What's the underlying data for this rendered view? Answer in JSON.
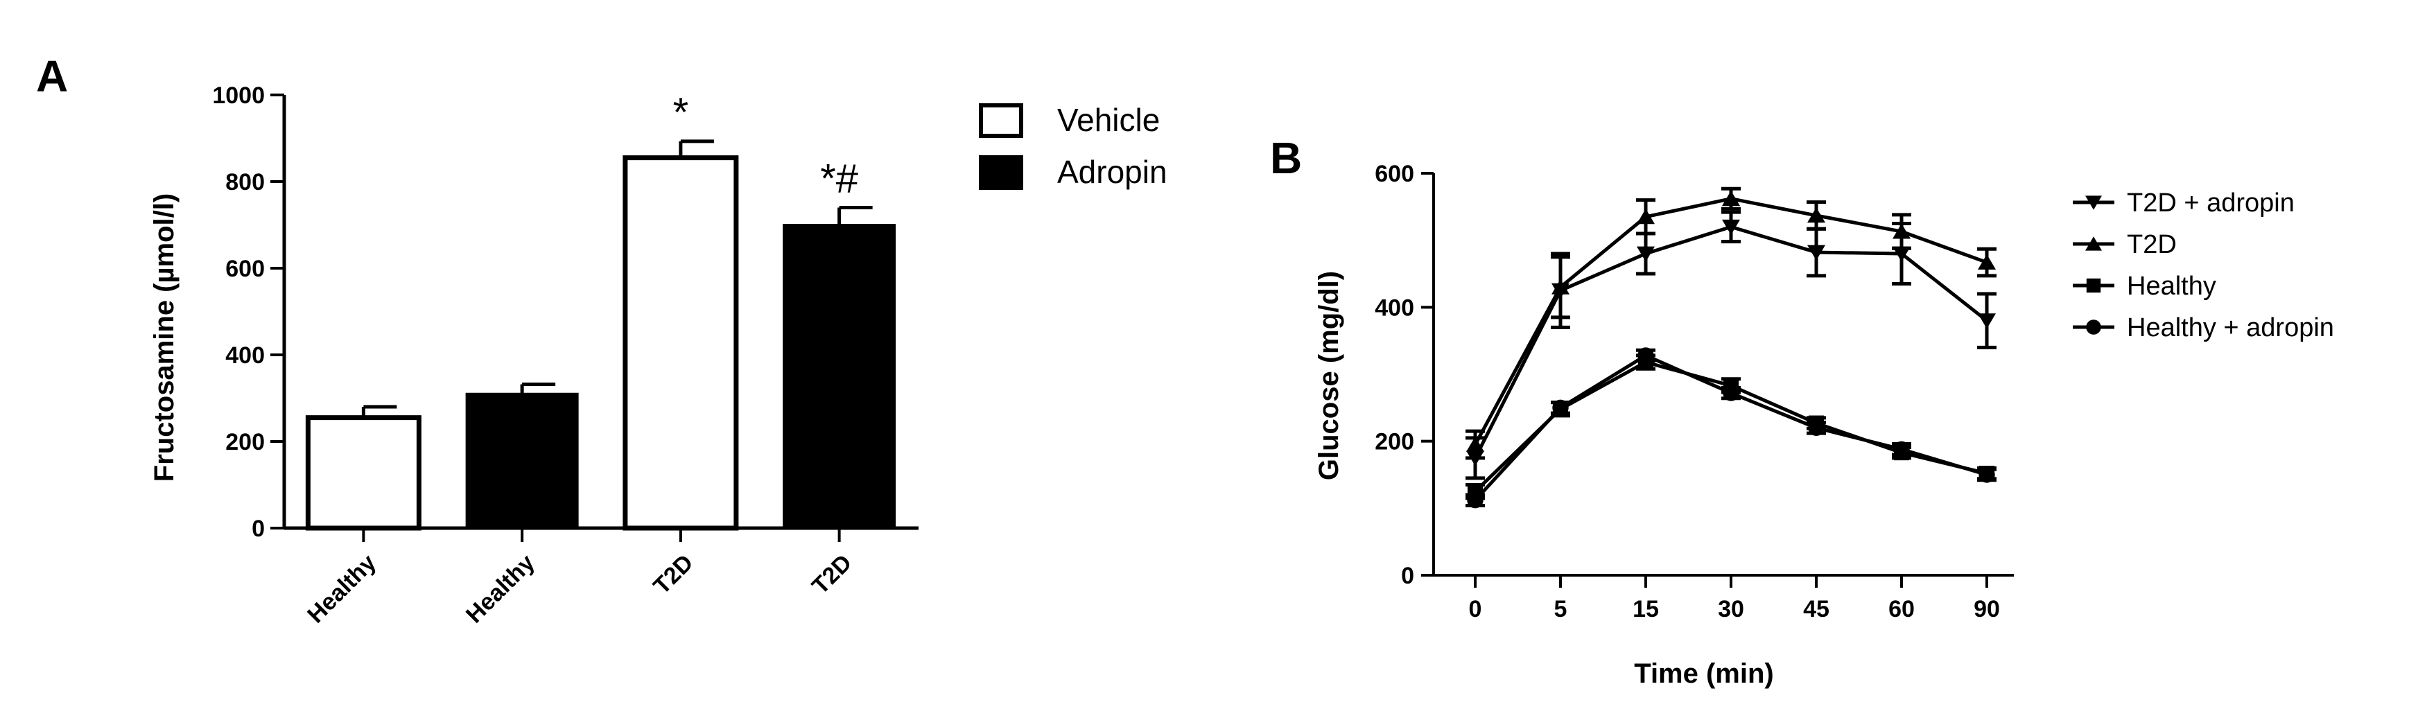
{
  "chart_data": [
    {
      "panel": "A",
      "type": "bar",
      "categories": [
        "Healthy",
        "Healthy",
        "T2D",
        "T2D"
      ],
      "series": [
        {
          "name": "Vehicle",
          "values": [
            255,
            null,
            855,
            null
          ],
          "errors": [
            25,
            null,
            38,
            null
          ],
          "color": "#ffffff"
        },
        {
          "name": "Adropin",
          "values": [
            null,
            310,
            null,
            700
          ],
          "errors": [
            null,
            22,
            null,
            40
          ],
          "color": "#000000"
        }
      ],
      "annotations": [
        {
          "category_index": 2,
          "text": "*"
        },
        {
          "category_index": 3,
          "text": "*#"
        }
      ],
      "ylabel": "Fructosamine (µmol/l)",
      "xlabel": "",
      "ylim": [
        0,
        1000
      ],
      "yticks": [
        "0",
        "200",
        "400",
        "600",
        "800",
        "1000"
      ],
      "legend": "top-right",
      "grid": false
    },
    {
      "panel": "B",
      "type": "line",
      "x": [
        "0",
        "5",
        "15",
        "30",
        "45",
        "60",
        "90"
      ],
      "series": [
        {
          "name": "T2D + adropin",
          "marker": "triangle-down",
          "values": [
            175,
            425,
            480,
            520,
            482,
            480,
            380
          ],
          "errors": [
            30,
            55,
            30,
            22,
            35,
            45,
            40
          ]
        },
        {
          "name": "T2D",
          "marker": "triangle-up",
          "values": [
            195,
            430,
            535,
            562,
            537,
            513,
            467
          ],
          "errors": [
            20,
            45,
            25,
            15,
            20,
            25,
            20
          ]
        },
        {
          "name": "Healthy",
          "marker": "square",
          "values": [
            125,
            248,
            318,
            283,
            227,
            183,
            152
          ],
          "errors": [
            10,
            10,
            10,
            10,
            8,
            8,
            8
          ]
        },
        {
          "name": "Healthy + adropin",
          "marker": "circle",
          "values": [
            112,
            250,
            328,
            272,
            220,
            188,
            150
          ],
          "errors": [
            8,
            8,
            8,
            8,
            8,
            8,
            8
          ]
        }
      ],
      "xlabel": "Time (min)",
      "ylabel": "Glucose (mg/dl)",
      "ylim": [
        0,
        600
      ],
      "yticks": [
        "0",
        "200",
        "400",
        "600"
      ],
      "legend": "right",
      "grid": false
    }
  ]
}
